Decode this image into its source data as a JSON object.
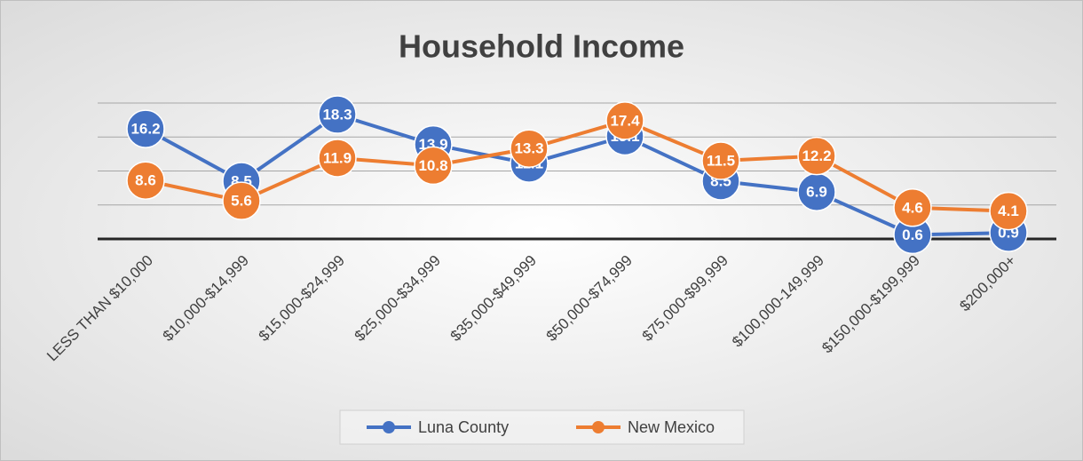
{
  "chart_data": {
    "type": "line",
    "title": "Household Income",
    "categories": [
      "LESS THAN $10,000",
      "$10,000-$14,999",
      "$15,000-$24,999",
      "$25,000-$34,999",
      "$35,000-$49,999",
      "$50,000-$74,999",
      "$75,000-$99,999",
      "$100,000-149,999",
      "$150,000-$199,999",
      "$200,000+"
    ],
    "series": [
      {
        "name": "Luna County",
        "color": "#4472c4",
        "values": [
          16.2,
          8.5,
          18.3,
          13.9,
          11.1,
          15.1,
          8.5,
          6.9,
          0.6,
          0.9
        ]
      },
      {
        "name": "New Mexico",
        "color": "#ed7d31",
        "values": [
          8.6,
          5.6,
          11.9,
          10.8,
          13.3,
          17.4,
          11.5,
          12.2,
          4.6,
          4.1
        ]
      }
    ],
    "ylim": [
      0,
      20
    ],
    "yticks": [
      0,
      5,
      10,
      15,
      20
    ],
    "grid": true,
    "legend": "bottom"
  }
}
